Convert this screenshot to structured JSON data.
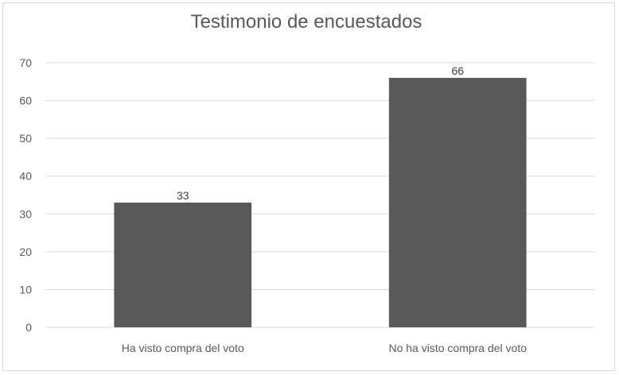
{
  "chart_data": {
    "type": "bar",
    "title": "Testimonio de encuestados",
    "categories": [
      "Ha visto compra del voto",
      "No ha visto compra del voto"
    ],
    "values": [
      33,
      66
    ],
    "data_labels": [
      "33",
      "66"
    ],
    "xlabel": "",
    "ylabel": "",
    "ylim": [
      0,
      70
    ],
    "yticks": [
      0,
      10,
      20,
      30,
      40,
      50,
      60,
      70
    ],
    "grid": true,
    "legend": "none",
    "bar_color": "#595959"
  }
}
